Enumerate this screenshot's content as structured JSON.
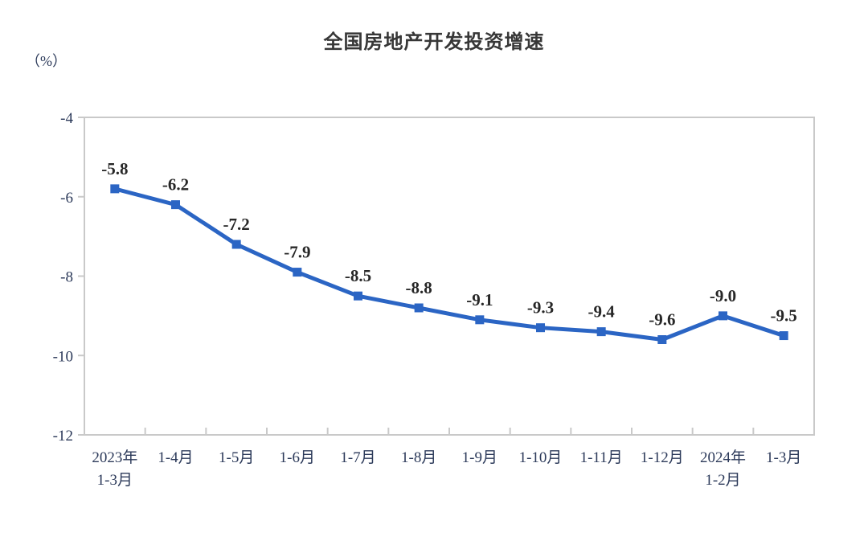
{
  "chart_data": {
    "type": "line",
    "title": "全国房地产开发投资增速",
    "unit_label": "（%）",
    "categories": [
      [
        "2023年",
        "1-3月"
      ],
      [
        "1-4月"
      ],
      [
        "1-5月"
      ],
      [
        "1-6月"
      ],
      [
        "1-7月"
      ],
      [
        "1-8月"
      ],
      [
        "1-9月"
      ],
      [
        "1-10月"
      ],
      [
        "1-11月"
      ],
      [
        "1-12月"
      ],
      [
        "2024年",
        "1-2月"
      ],
      [
        "1-3月"
      ]
    ],
    "values": [
      -5.8,
      -6.2,
      -7.2,
      -7.9,
      -8.5,
      -8.8,
      -9.1,
      -9.3,
      -9.4,
      -9.6,
      -9.0,
      -9.5
    ],
    "data_labels": [
      "-5.8",
      "-6.2",
      "-7.2",
      "-7.9",
      "-8.5",
      "-8.8",
      "-9.1",
      "-9.3",
      "-9.4",
      "-9.6",
      "-9.0",
      "-9.5"
    ],
    "y_ticks": [
      "-4",
      "-6",
      "-8",
      "-10",
      "-12"
    ],
    "y_tick_values": [
      -4,
      -6,
      -8,
      -10,
      -12
    ],
    "ylim": [
      -12,
      -4
    ],
    "grid": false,
    "legend": "none",
    "colors": {
      "line": "#2b65c4",
      "marker": "#2b65c4",
      "plot_border": "#c9c9c9",
      "axis_text": "#2c3a5a",
      "data_label_text": "#272727",
      "title_text": "#373737"
    }
  }
}
